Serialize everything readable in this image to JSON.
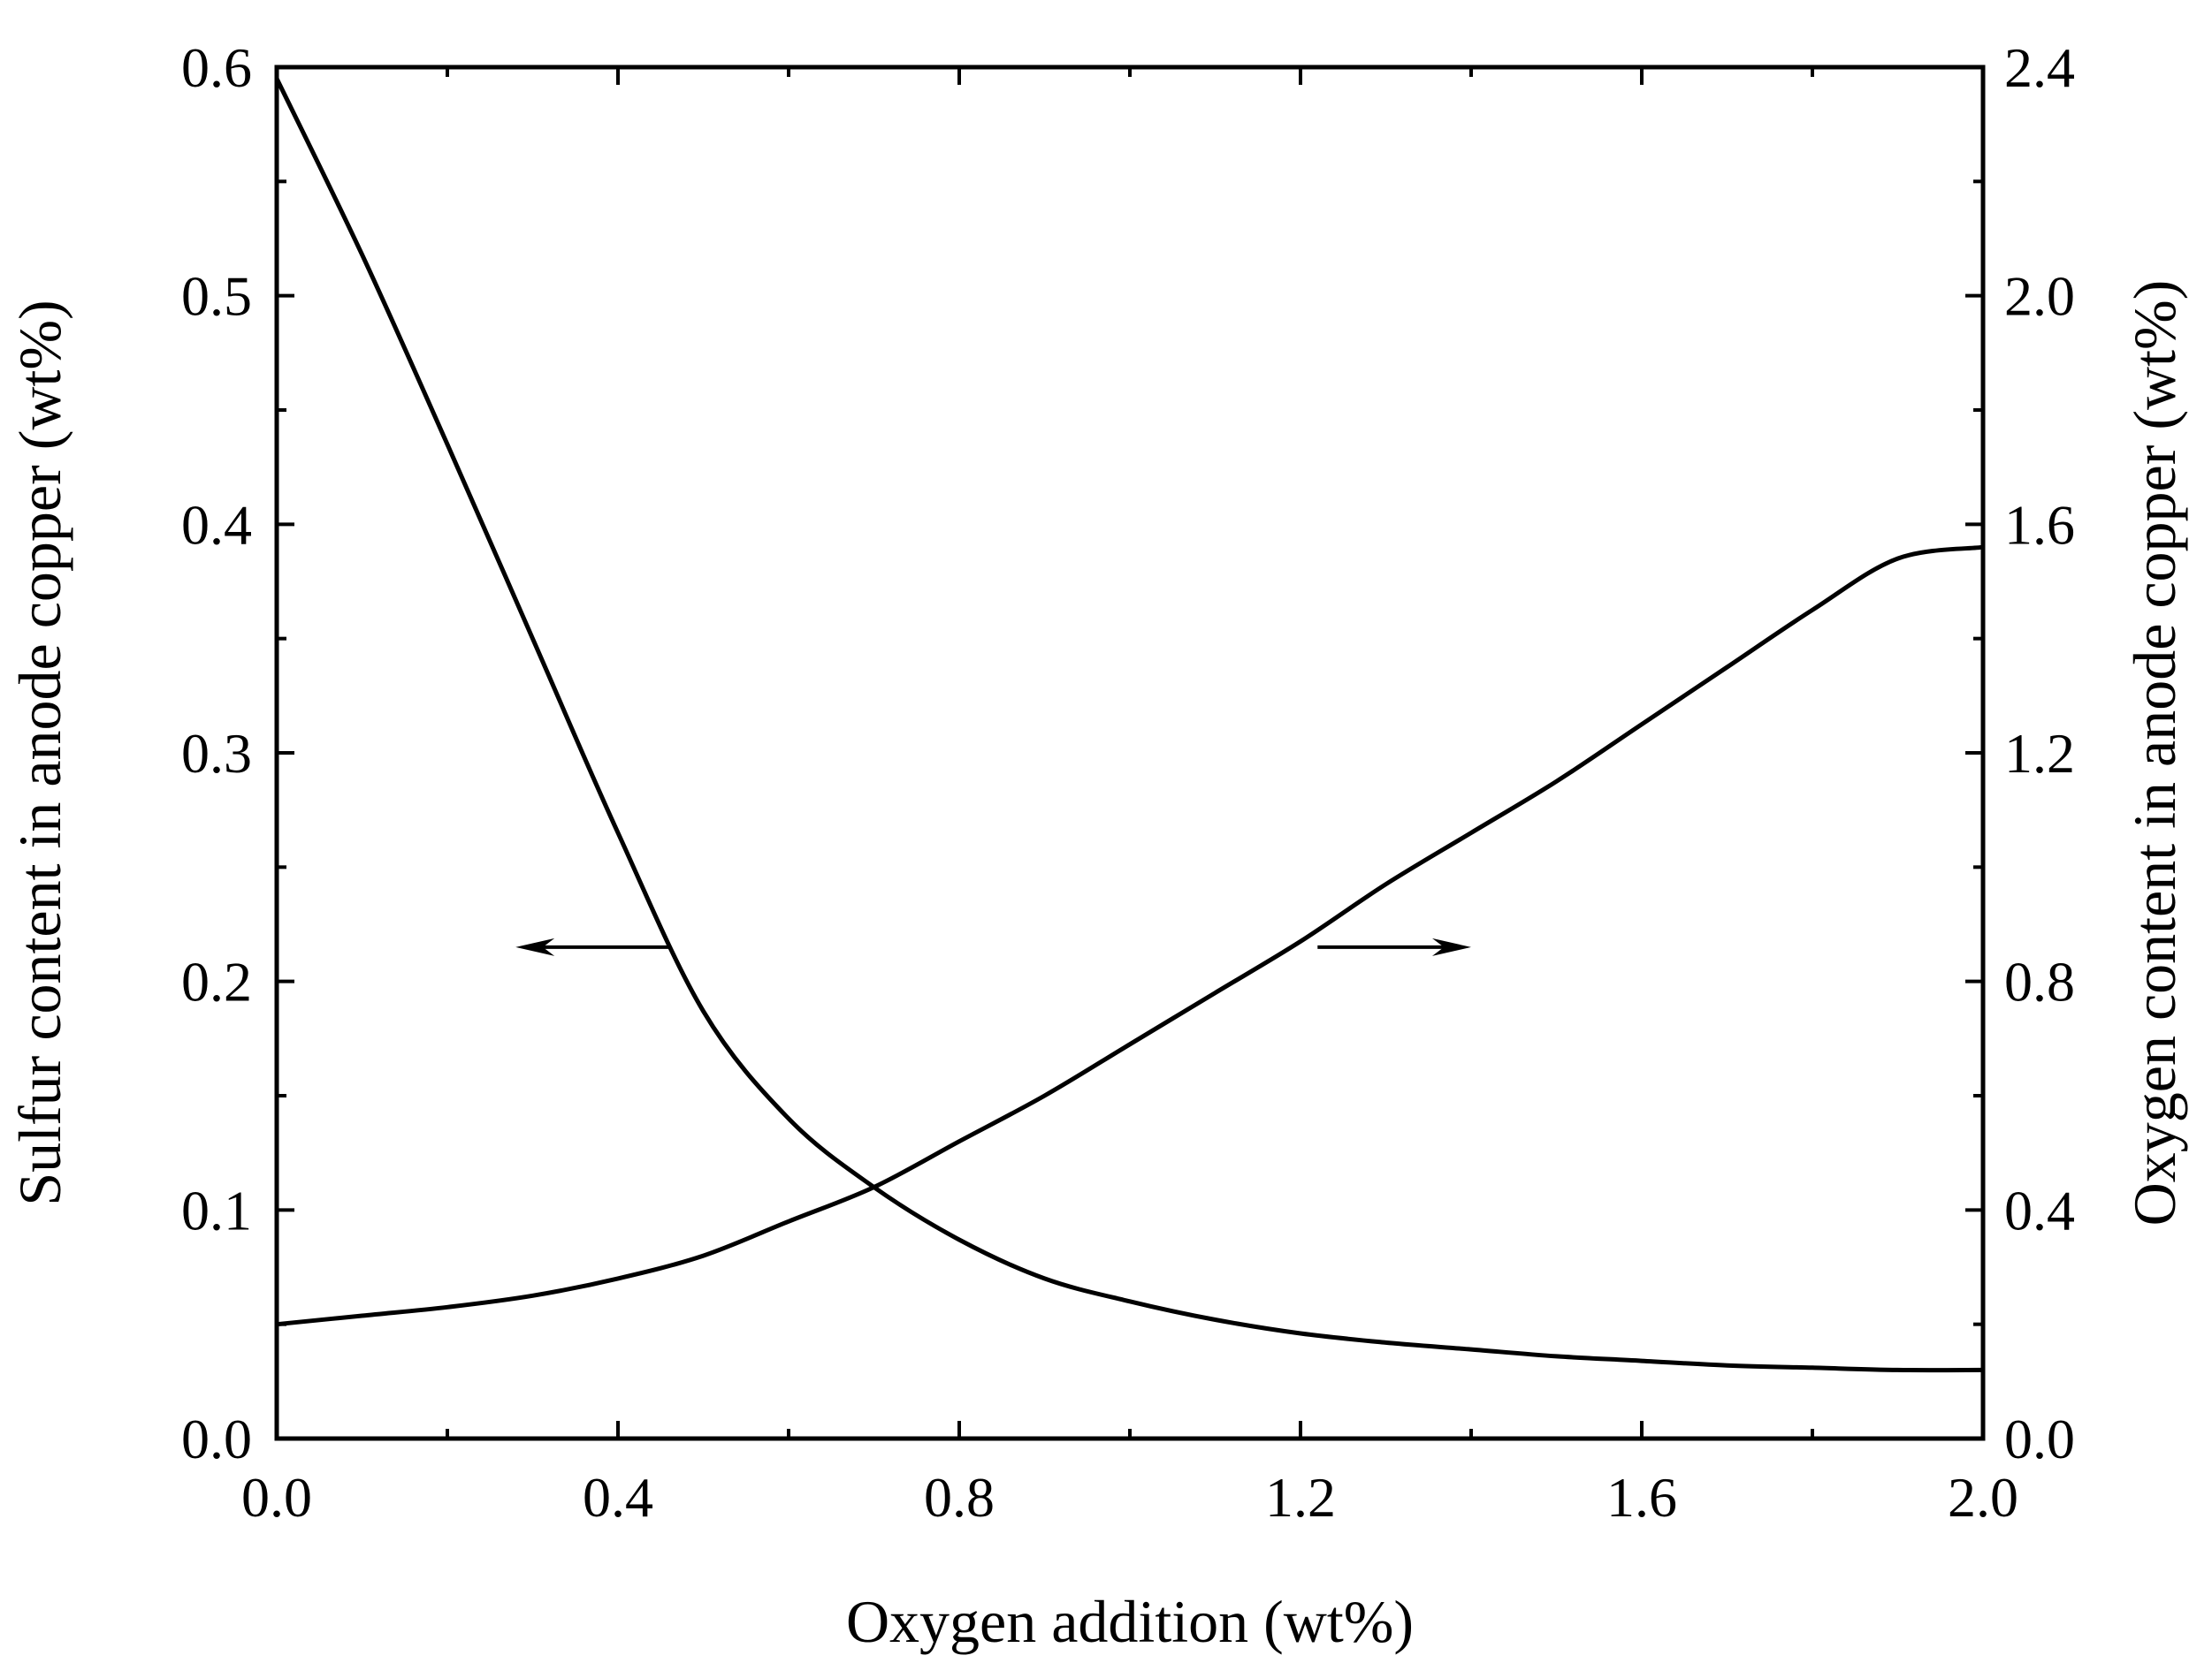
{
  "chart_data": {
    "type": "line",
    "title": "",
    "xlabel": "Oxygen addition (wt%)",
    "ylabel_left": "Sulfur content in anode copper (wt%)",
    "ylabel_right": "Oxygen content in anode copper (wt%)",
    "xlim": [
      0,
      2.0
    ],
    "ylim_left": [
      0,
      0.6
    ],
    "ylim_right": [
      0,
      2.4
    ],
    "x_ticks": [
      "0.0",
      "0.4",
      "0.8",
      "1.2",
      "1.6",
      "2.0"
    ],
    "y_left_ticks": [
      "0.0",
      "0.1",
      "0.2",
      "0.3",
      "0.4",
      "0.5",
      "0.6"
    ],
    "y_right_ticks": [
      "0.0",
      "0.4",
      "0.8",
      "1.2",
      "1.6",
      "2.0",
      "2.4"
    ],
    "grid": false,
    "series": [
      {
        "name": "Sulfur content",
        "axis": "left",
        "x": [
          0.0,
          0.1,
          0.2,
          0.3,
          0.4,
          0.5,
          0.6,
          0.7,
          0.8,
          0.9,
          1.0,
          1.1,
          1.2,
          1.3,
          1.4,
          1.5,
          1.6,
          1.7,
          1.8,
          1.9,
          2.0
        ],
        "values": [
          0.595,
          0.518,
          0.435,
          0.35,
          0.265,
          0.187,
          0.14,
          0.11,
          0.087,
          0.07,
          0.06,
          0.052,
          0.046,
          0.042,
          0.039,
          0.036,
          0.034,
          0.032,
          0.031,
          0.03,
          0.03
        ]
      },
      {
        "name": "Oxygen content",
        "axis": "right",
        "x": [
          0.0,
          0.1,
          0.2,
          0.3,
          0.4,
          0.5,
          0.6,
          0.7,
          0.8,
          0.9,
          1.0,
          1.1,
          1.2,
          1.3,
          1.4,
          1.5,
          1.6,
          1.7,
          1.8,
          1.9,
          2.0
        ],
        "values": [
          0.2,
          0.215,
          0.23,
          0.25,
          0.28,
          0.32,
          0.38,
          0.44,
          0.52,
          0.6,
          0.69,
          0.78,
          0.87,
          0.97,
          1.06,
          1.15,
          1.25,
          1.35,
          1.45,
          1.54,
          1.56
        ]
      }
    ],
    "annotations": [
      {
        "type": "arrow",
        "direction": "left",
        "points_to": "left-axis",
        "from_x": 0.46,
        "to_x": 0.28,
        "y_right": 0.86
      },
      {
        "type": "arrow",
        "direction": "right",
        "points_to": "right-axis",
        "from_x": 1.22,
        "to_x": 1.4,
        "y_right": 0.86
      }
    ]
  }
}
